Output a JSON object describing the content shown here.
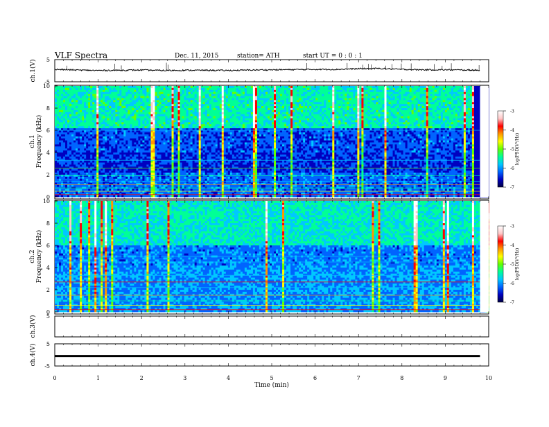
{
  "header": {
    "title": "VLF  Spectra",
    "date": "Dec. 11, 2015",
    "station": "station= ATH",
    "start": "start  UT  =    0  :  0  :  1"
  },
  "chart_data": [
    {
      "type": "line",
      "panel": "ch1-waveform",
      "ylabel": "ch.1(V)",
      "yticks": [
        "5",
        "-5"
      ],
      "ylim": [
        -5,
        5
      ],
      "xlim": [
        0,
        10
      ],
      "x": [
        0,
        0.5,
        1,
        1.5,
        2,
        2.5,
        3,
        3.5,
        4,
        4.5,
        5,
        5.5,
        6,
        6.5,
        7,
        7.5,
        8,
        8.5,
        9,
        9.5,
        9.8
      ],
      "values": [
        0.6,
        0.3,
        0.1,
        0.2,
        0.3,
        0.1,
        0.2,
        0.2,
        0.1,
        0.3,
        0.4,
        0.5,
        0.6,
        0.6,
        0.9,
        1.0,
        0.6,
        0.4,
        0.4,
        0.3,
        0.2
      ]
    },
    {
      "type": "heatmap",
      "panel": "ch1-spectrogram",
      "ylabel": "ch.1\nFrequency (kHz)",
      "yticks": [
        "0",
        "2",
        "4",
        "6",
        "8",
        "10"
      ],
      "ylim": [
        0,
        10
      ],
      "xlim": [
        0,
        10
      ],
      "colorbar_label": "log(PSD(V²/Hz)",
      "colorbar_ticks": [
        "-3",
        "-4",
        "-5",
        "-6",
        "-7"
      ],
      "colorbar_range": [
        -7,
        -3
      ]
    },
    {
      "type": "heatmap",
      "panel": "ch2-spectrogram",
      "ylabel": "ch.2\nFrequency (kHz)",
      "yticks": [
        "0",
        "2",
        "4",
        "6",
        "8",
        "10"
      ],
      "ylim": [
        0,
        10
      ],
      "xlim": [
        0,
        10
      ],
      "colorbar_label": "log(PSD(V²/Hz)",
      "colorbar_ticks": [
        "-3",
        "-4",
        "-5",
        "-6",
        "-7"
      ],
      "colorbar_range": [
        -7,
        -3
      ]
    },
    {
      "type": "line",
      "panel": "ch3-waveform",
      "ylabel": "ch.3(V)",
      "yticks": [
        "5"
      ],
      "ylim": [
        -5,
        5
      ],
      "xlim": [
        0,
        10
      ],
      "x": [],
      "values": []
    },
    {
      "type": "line",
      "panel": "ch4-waveform",
      "ylabel": "ch.4(V)",
      "yticks": [
        "5",
        "-5"
      ],
      "ylim": [
        -5,
        5
      ],
      "xlim": [
        0,
        10
      ],
      "x": [
        0,
        9.8
      ],
      "values": [
        -0.5,
        -0.5
      ]
    }
  ],
  "xaxis": {
    "label": "Time  (min)",
    "ticks": [
      "0",
      "1",
      "2",
      "3",
      "4",
      "5",
      "6",
      "7",
      "8",
      "9",
      "10"
    ]
  },
  "colors": {
    "colormap": [
      "#000040",
      "#0000c0",
      "#0064ff",
      "#00c8ff",
      "#00ff96",
      "#64ff00",
      "#ffff00",
      "#ff9600",
      "#ff0000",
      "#ffc8c8",
      "#ffffff"
    ]
  }
}
